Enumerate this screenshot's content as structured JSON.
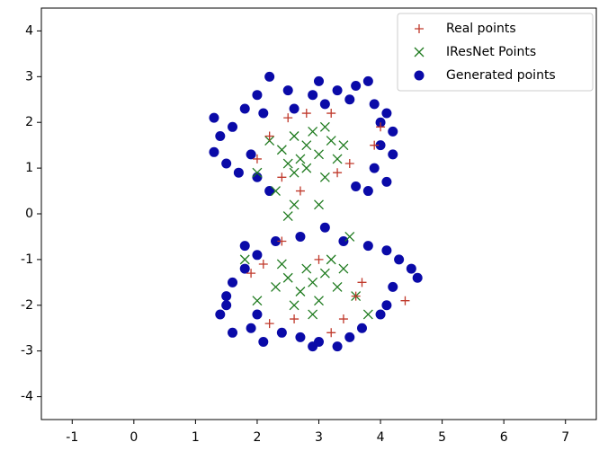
{
  "chart_data": {
    "type": "scatter",
    "xlim": [
      -1.5,
      7.5
    ],
    "ylim": [
      -4.5,
      4.5
    ],
    "xticks": [
      -1,
      0,
      1,
      2,
      3,
      4,
      5,
      6,
      7
    ],
    "yticks": [
      -4,
      -3,
      -2,
      -1,
      0,
      1,
      2,
      3,
      4
    ],
    "legend": "upper right",
    "series": [
      {
        "name": "Real points",
        "color": "#c0392b",
        "marker": "+",
        "x": [
          2.2,
          2.5,
          3.5,
          3.9,
          2.0,
          2.7,
          3.3,
          4.0,
          2.4,
          3.2,
          2.8,
          2.1,
          2.4,
          3.7,
          3.6,
          4.4,
          3.2,
          2.2,
          1.9,
          2.6,
          3.4,
          3.0
        ],
        "y": [
          1.7,
          2.1,
          1.1,
          1.5,
          1.2,
          0.5,
          0.9,
          1.9,
          0.8,
          2.2,
          2.2,
          -1.1,
          -0.6,
          -1.5,
          -1.8,
          -1.9,
          -2.6,
          -2.4,
          -1.3,
          -2.3,
          -2.3,
          -1.0
        ]
      },
      {
        "name": "IResNet Points",
        "color": "#1e7a1e",
        "marker": "x",
        "x": [
          2.4,
          2.6,
          2.8,
          3.0,
          3.2,
          2.7,
          2.9,
          3.3,
          2.5,
          3.4,
          2.2,
          2.6,
          3.1,
          2.3,
          2.5,
          2.6,
          3.0,
          2.0,
          2.8,
          3.1,
          2.5,
          2.7,
          2.9,
          3.1,
          3.3,
          2.8,
          3.0,
          3.4,
          2.6,
          2.3,
          3.6,
          3.5,
          2.0,
          1.8,
          3.8,
          2.9,
          3.2,
          2.4
        ],
        "y": [
          1.4,
          1.7,
          1.5,
          1.3,
          1.6,
          1.2,
          1.8,
          1.2,
          1.1,
          1.5,
          1.6,
          0.9,
          0.8,
          0.5,
          -0.05,
          0.2,
          0.2,
          0.9,
          1.0,
          1.9,
          -1.4,
          -1.7,
          -1.5,
          -1.3,
          -1.6,
          -1.2,
          -1.9,
          -1.2,
          -2.0,
          -1.6,
          -1.8,
          -0.5,
          -1.9,
          -1.0,
          -2.2,
          -2.2,
          -1.0,
          -1.1
        ]
      },
      {
        "name": "Generated points",
        "color": "#0a0aa8",
        "marker": "o",
        "x": [
          1.3,
          1.4,
          1.3,
          1.5,
          1.7,
          1.6,
          1.8,
          2.0,
          2.2,
          2.5,
          2.6,
          2.9,
          3.0,
          3.3,
          3.5,
          3.6,
          3.8,
          3.9,
          4.1,
          4.2,
          4.0,
          4.2,
          3.9,
          4.1,
          3.8,
          3.6,
          2.2,
          2.0,
          1.9,
          2.1,
          4.0,
          3.1,
          1.4,
          1.5,
          1.6,
          1.8,
          1.8,
          2.0,
          2.3,
          2.7,
          3.1,
          3.4,
          3.8,
          4.1,
          4.3,
          4.5,
          4.6,
          4.2,
          4.1,
          4.0,
          3.7,
          3.5,
          3.0,
          2.7,
          2.4,
          2.1,
          1.9,
          1.6,
          1.5,
          2.0,
          3.3,
          2.9
        ],
        "y": [
          2.1,
          1.7,
          1.35,
          1.1,
          0.9,
          1.9,
          2.3,
          2.6,
          3.0,
          2.7,
          2.3,
          2.6,
          2.9,
          2.7,
          2.5,
          2.8,
          2.9,
          2.4,
          2.2,
          1.8,
          1.5,
          1.3,
          1.0,
          0.7,
          0.5,
          0.6,
          0.5,
          0.8,
          1.3,
          2.2,
          2.0,
          2.4,
          -2.2,
          -1.8,
          -1.5,
          -1.2,
          -0.7,
          -0.9,
          -0.6,
          -0.5,
          -0.3,
          -0.6,
          -0.7,
          -0.8,
          -1.0,
          -1.2,
          -1.4,
          -1.6,
          -2.0,
          -2.2,
          -2.5,
          -2.7,
          -2.8,
          -2.7,
          -2.6,
          -2.8,
          -2.5,
          -2.6,
          -2.0,
          -2.2,
          -2.9,
          -2.9
        ]
      }
    ]
  }
}
